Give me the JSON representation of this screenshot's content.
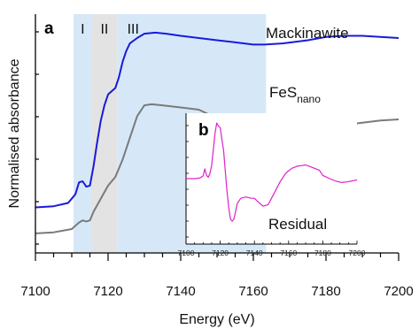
{
  "chart_data": [
    {
      "panel": "a",
      "type": "line",
      "xlabel": "Energy (eV)",
      "ylabel": "Normalised absorbance",
      "xlim": [
        7100,
        7200
      ],
      "xticks": [
        "7100",
        "7120",
        "7140",
        "7160",
        "7180",
        "7200"
      ],
      "regions": [
        {
          "label": "I",
          "x": [
            7110.5,
            7115.5
          ],
          "color": "#d6e8f8"
        },
        {
          "label": "II",
          "x": [
            7115.5,
            7122.5
          ],
          "color": "#e3e3e3"
        },
        {
          "label": "III",
          "x": [
            7122.5,
            7163.5
          ],
          "color": "#d6e8f8"
        }
      ],
      "series": [
        {
          "name": "Mackinawite",
          "sub": "",
          "color": "#1a1adb",
          "x": [
            7100,
            7105,
            7109,
            7111,
            7112,
            7113,
            7114,
            7115,
            7116,
            7117,
            7118,
            7119,
            7120,
            7121,
            7122,
            7123,
            7124,
            7125,
            7126,
            7128,
            7130,
            7133,
            7136,
            7140,
            7145,
            7150,
            7155,
            7160,
            7163,
            7168,
            7175,
            7180,
            7185,
            7190,
            7195,
            7200
          ],
          "y": [
            0.06,
            0.065,
            0.08,
            0.12,
            0.175,
            0.18,
            0.155,
            0.16,
            0.25,
            0.36,
            0.46,
            0.53,
            0.58,
            0.595,
            0.61,
            0.66,
            0.73,
            0.78,
            0.815,
            0.84,
            0.86,
            0.865,
            0.86,
            0.85,
            0.84,
            0.83,
            0.82,
            0.81,
            0.81,
            0.815,
            0.83,
            0.845,
            0.85,
            0.85,
            0.845,
            0.84
          ]
        },
        {
          "name": "FeS",
          "sub": "nano",
          "color": "#7a7a7a",
          "x": [
            7100,
            7105,
            7110,
            7112,
            7113,
            7114,
            7115,
            7116,
            7118,
            7120,
            7122,
            7124,
            7126,
            7128,
            7130,
            7132,
            7135,
            7140,
            7145,
            7150,
            7155,
            7160,
            7165,
            7170,
            7175,
            7180,
            7185,
            7190,
            7195,
            7200
          ],
          "y": [
            -0.06,
            -0.055,
            -0.04,
            -0.01,
            0.0,
            -0.005,
            0.0,
            0.04,
            0.1,
            0.16,
            0.2,
            0.28,
            0.38,
            0.48,
            0.53,
            0.535,
            0.53,
            0.52,
            0.51,
            0.47,
            0.4,
            0.375,
            0.375,
            0.39,
            0.41,
            0.42,
            0.44,
            0.45,
            0.46,
            0.465
          ]
        }
      ]
    },
    {
      "panel": "b",
      "type": "line",
      "xlim": [
        7100,
        7200
      ],
      "xticks": [
        "7100",
        "7120",
        "7140",
        "7160",
        "7180",
        "7200"
      ],
      "series": [
        {
          "name": "Residual",
          "color": "#e020c8",
          "x": [
            7100,
            7105,
            7108,
            7110,
            7111,
            7112,
            7113,
            7114,
            7115,
            7116,
            7117,
            7118,
            7119,
            7120,
            7121,
            7122,
            7123,
            7124,
            7125,
            7126,
            7127,
            7128,
            7129,
            7130,
            7132,
            7135,
            7138,
            7140,
            7142,
            7145,
            7148,
            7150,
            7152,
            7155,
            7158,
            7160,
            7162,
            7165,
            7168,
            7170,
            7173,
            7176,
            7178,
            7180,
            7184,
            7188,
            7191,
            7194,
            7196,
            7198,
            7200
          ],
          "y": [
            0.0,
            0.0,
            0.01,
            0.04,
            0.15,
            0.05,
            0.02,
            0.08,
            0.2,
            0.45,
            0.7,
            0.85,
            0.8,
            0.78,
            0.6,
            0.42,
            0.1,
            -0.2,
            -0.45,
            -0.62,
            -0.65,
            -0.62,
            -0.5,
            -0.38,
            -0.3,
            -0.28,
            -0.3,
            -0.3,
            -0.35,
            -0.42,
            -0.4,
            -0.3,
            -0.2,
            -0.05,
            0.07,
            0.12,
            0.16,
            0.19,
            0.2,
            0.21,
            0.18,
            0.15,
            0.13,
            0.05,
            0.0,
            -0.04,
            -0.06,
            -0.05,
            -0.04,
            -0.03,
            -0.02
          ]
        }
      ]
    }
  ]
}
